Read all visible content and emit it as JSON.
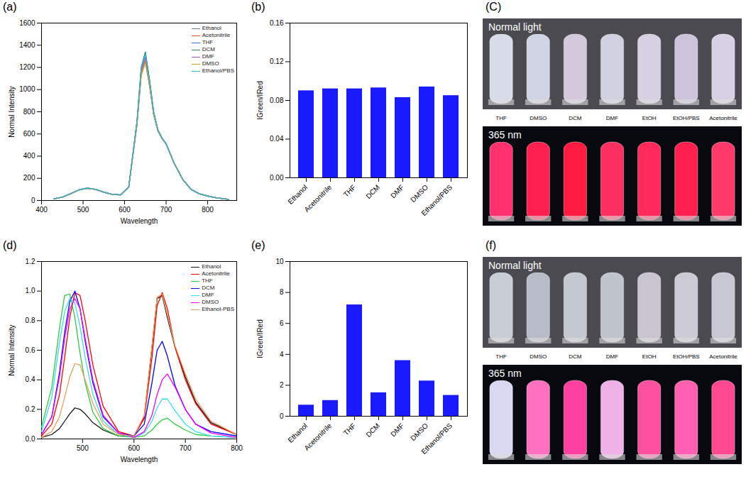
{
  "chart_data": [
    {
      "panel": "(a)",
      "type": "line",
      "x_label": "Wavelength",
      "y_label": "Normal Intensity",
      "x": [
        430,
        450,
        470,
        490,
        510,
        530,
        550,
        570,
        590,
        610,
        630,
        640,
        650,
        660,
        670,
        680,
        690,
        700,
        710,
        720,
        740,
        760,
        780,
        800,
        820,
        850
      ],
      "series": [
        {
          "name": "Ethanol",
          "color": "#6b7b8c",
          "values": [
            15,
            30,
            60,
            95,
            110,
            100,
            75,
            55,
            50,
            120,
            690,
            1130,
            1250,
            1040,
            775,
            630,
            560,
            510,
            420,
            330,
            190,
            100,
            60,
            40,
            25,
            10
          ]
        },
        {
          "name": "Acetonitrile",
          "color": "#e8502a",
          "values": [
            15,
            30,
            60,
            95,
            112,
            100,
            75,
            55,
            50,
            118,
            695,
            1140,
            1260,
            1045,
            778,
            628,
            558,
            508,
            418,
            328,
            188,
            100,
            60,
            40,
            25,
            10
          ]
        },
        {
          "name": "THF",
          "color": "#3a6fd8",
          "values": [
            15,
            30,
            62,
            96,
            112,
            101,
            76,
            55,
            50,
            122,
            720,
            1200,
            1340,
            1090,
            800,
            640,
            565,
            512,
            422,
            332,
            191,
            101,
            61,
            40,
            25,
            10
          ]
        },
        {
          "name": "DCM",
          "color": "#2f8f4f",
          "values": [
            15,
            30,
            61,
            96,
            111,
            100,
            75,
            55,
            50,
            121,
            715,
            1190,
            1330,
            1085,
            798,
            638,
            563,
            511,
            421,
            331,
            190,
            100,
            60,
            40,
            25,
            10
          ]
        },
        {
          "name": "DMF",
          "color": "#a050c8",
          "values": [
            15,
            30,
            60,
            95,
            110,
            100,
            75,
            55,
            50,
            120,
            705,
            1165,
            1290,
            1060,
            785,
            633,
            561,
            510,
            420,
            330,
            190,
            100,
            60,
            40,
            25,
            10
          ]
        },
        {
          "name": "DMSO",
          "color": "#d6a020",
          "values": [
            15,
            30,
            60,
            94,
            109,
            99,
            74,
            54,
            49,
            119,
            688,
            1128,
            1248,
            1038,
            773,
            628,
            558,
            508,
            419,
            329,
            189,
            99,
            59,
            40,
            25,
            10
          ]
        },
        {
          "name": "Ethanol/PBS",
          "color": "#30b8d8",
          "values": [
            15,
            30,
            61,
            96,
            111,
            101,
            75,
            55,
            50,
            121,
            712,
            1185,
            1320,
            1080,
            795,
            636,
            562,
            510,
            421,
            331,
            190,
            100,
            60,
            40,
            25,
            10
          ]
        }
      ],
      "xlim": [
        400,
        870
      ],
      "xticks": [
        400,
        500,
        600,
        700,
        800
      ],
      "ylim": [
        0,
        1600
      ],
      "yticks": [
        0,
        200,
        400,
        600,
        800,
        1000,
        1200,
        1400,
        1600
      ],
      "legend": "top-right"
    },
    {
      "panel": "(b)",
      "type": "bar",
      "y_label": "IGreen/IRed",
      "categories": [
        "Ethanol",
        "Acetonitrile",
        "THF",
        "DCM",
        "DMF",
        "DMSO",
        "Ethanol/PBS"
      ],
      "values": [
        0.09,
        0.092,
        0.092,
        0.093,
        0.083,
        0.094,
        0.085
      ],
      "color": "#1a1aff",
      "ylim": [
        0,
        0.16
      ],
      "yticks": [
        {
          "value": 0,
          "label": "0.00"
        },
        {
          "value": 0.04,
          "label": "0.04"
        },
        {
          "value": 0.08,
          "label": "0.08"
        },
        {
          "value": 0.12,
          "label": "0.12"
        },
        {
          "value": 0.16,
          "label": "0.16"
        }
      ]
    },
    {
      "panel": "(C)",
      "type": "image",
      "categories": [
        "THF",
        "DMSO",
        "DCM",
        "DMF",
        "EtOH",
        "EtOH/PBS",
        "Acetonitrile"
      ],
      "photos": [
        {
          "caption": "Normal light",
          "colors": [
            "#d8dce8",
            "#d0d4e4",
            "#d4c8dc",
            "#cfd0e0",
            "#d6d0e2",
            "#cdc4dc",
            "#d8d0e4"
          ]
        },
        {
          "caption": "365 nm",
          "colors": [
            "#ff3070",
            "#ff2050",
            "#ff1a40",
            "#ff3060",
            "#ff2a5a",
            "#ff2050",
            "#ff3a6a"
          ]
        }
      ]
    },
    {
      "panel": "(d)",
      "type": "line",
      "x_label": "Wavelength",
      "y_label": "Normal Intensity",
      "x": [
        420,
        440,
        455,
        465,
        475,
        485,
        495,
        505,
        520,
        540,
        570,
        600,
        620,
        635,
        645,
        655,
        665,
        680,
        700,
        720,
        750,
        800
      ],
      "series": [
        {
          "name": "Ethanol",
          "color": "#111111",
          "values": [
            0.01,
            0.03,
            0.07,
            0.12,
            0.17,
            0.21,
            0.2,
            0.17,
            0.11,
            0.06,
            0.02,
            0.02,
            0.15,
            0.62,
            0.95,
            0.97,
            0.82,
            0.62,
            0.42,
            0.25,
            0.11,
            0.03
          ]
        },
        {
          "name": "Acetonitrile",
          "color": "#ff0000",
          "values": [
            0.02,
            0.1,
            0.3,
            0.55,
            0.82,
            0.99,
            0.97,
            0.8,
            0.5,
            0.22,
            0.05,
            0.02,
            0.14,
            0.55,
            0.9,
            0.99,
            0.88,
            0.62,
            0.4,
            0.24,
            0.1,
            0.03
          ]
        },
        {
          "name": "THF",
          "color": "#2ecc40",
          "values": [
            0.08,
            0.35,
            0.75,
            0.97,
            0.98,
            0.82,
            0.58,
            0.38,
            0.18,
            0.07,
            0.02,
            0.01,
            0.02,
            0.06,
            0.1,
            0.13,
            0.14,
            0.1,
            0.06,
            0.03,
            0.02,
            0.01
          ]
        },
        {
          "name": "DCM",
          "color": "#0000ff",
          "values": [
            0.03,
            0.15,
            0.45,
            0.72,
            0.93,
            1.0,
            0.88,
            0.66,
            0.38,
            0.15,
            0.04,
            0.02,
            0.1,
            0.38,
            0.6,
            0.66,
            0.56,
            0.36,
            0.2,
            0.1,
            0.05,
            0.02
          ]
        },
        {
          "name": "DMF",
          "color": "#33e0f0",
          "values": [
            0.05,
            0.28,
            0.65,
            0.86,
            0.95,
            0.92,
            0.76,
            0.55,
            0.3,
            0.12,
            0.03,
            0.01,
            0.04,
            0.12,
            0.21,
            0.27,
            0.27,
            0.19,
            0.1,
            0.05,
            0.02,
            0.01
          ]
        },
        {
          "name": "DMSO",
          "color": "#ff00ff",
          "values": [
            0.03,
            0.15,
            0.42,
            0.68,
            0.88,
            0.95,
            0.88,
            0.68,
            0.4,
            0.16,
            0.04,
            0.01,
            0.05,
            0.16,
            0.3,
            0.4,
            0.44,
            0.35,
            0.2,
            0.1,
            0.04,
            0.01
          ]
        },
        {
          "name": "Ethanol-PBS",
          "color": "#e8a060",
          "values": [
            0.01,
            0.05,
            0.15,
            0.28,
            0.42,
            0.51,
            0.5,
            0.4,
            0.24,
            0.1,
            0.03,
            0.02,
            0.16,
            0.63,
            0.96,
            0.98,
            0.84,
            0.63,
            0.44,
            0.27,
            0.12,
            0.03
          ]
        }
      ],
      "xlim": [
        420,
        800
      ],
      "xticks": [
        500,
        600,
        700,
        800
      ],
      "ylim": [
        0,
        1.2
      ],
      "yticks": [
        {
          "value": 0,
          "label": "0.0"
        },
        0.2,
        0.4,
        0.6,
        0.8,
        {
          "value": 1,
          "label": "1.0"
        },
        1.2
      ],
      "legend": "top-right"
    },
    {
      "panel": "(e)",
      "type": "bar",
      "y_label": "IGreen/IRed",
      "categories": [
        "Ethanol",
        "Acetonitrile",
        "THF",
        "DCM",
        "DMF",
        "DMSO",
        "Ethanol/PBS"
      ],
      "values": [
        0.72,
        1.02,
        7.2,
        1.52,
        3.6,
        2.28,
        1.35
      ],
      "color": "#1a1aff",
      "ylim": [
        0,
        10
      ],
      "yticks": [
        0,
        2,
        4,
        6,
        8,
        10
      ]
    },
    {
      "panel": "(f)",
      "type": "image",
      "categories": [
        "THF",
        "DMSO",
        "DCM",
        "DMF",
        "EtOH",
        "EtOH/PBS",
        "Acetonitrile"
      ],
      "photos": [
        {
          "caption": "Normal light",
          "colors": [
            "#c8ccd4",
            "#b8bcc8",
            "#c4c8d0",
            "#c0c4cc",
            "#c8c4d0",
            "#cccad4",
            "#c8c8d4"
          ]
        },
        {
          "caption": "365 nm",
          "colors": [
            "#d8d8f0",
            "#ff70c0",
            "#ff40a0",
            "#f0b0e8",
            "#ff50a0",
            "#ff60b0",
            "#ff4890"
          ]
        }
      ]
    }
  ]
}
